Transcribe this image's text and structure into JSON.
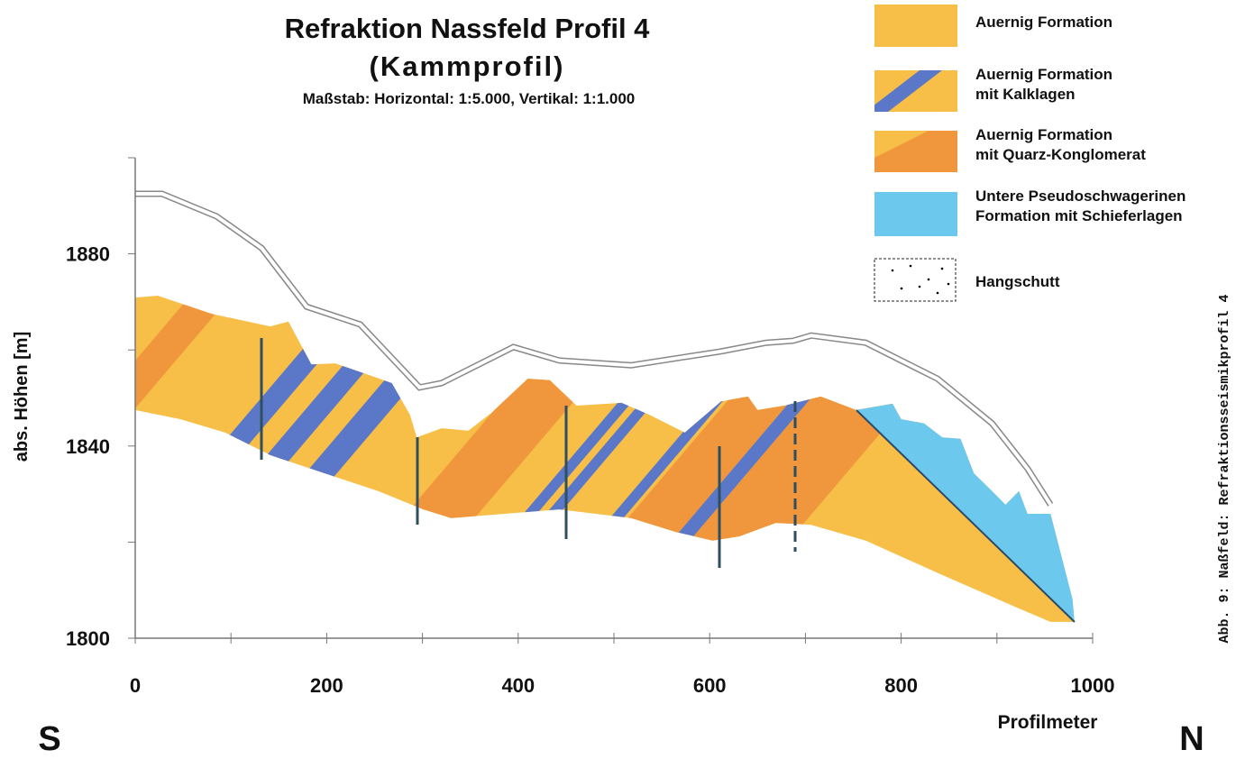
{
  "chart_data": {
    "type": "profile",
    "title": "Refraktion Nassfeld Profil 4",
    "subtitle": "(Kammprofil)",
    "scale_note": "Maßstab:  Horizontal: 1:5.000, Vertikal: 1:1.000",
    "x_label": "Profilmeter",
    "y_label": "abs. Höhen [m]",
    "annotations": [
      "S",
      "N",
      "Abb. 9: Naßfeld: Refraktionsseismikprofil 4"
    ],
    "xlim": [
      0,
      1000
    ],
    "ylim": [
      1800,
      1900
    ],
    "xticks": [
      0,
      200,
      400,
      600,
      800,
      1000
    ],
    "xminor_ticks": [
      100,
      300,
      500,
      700,
      900
    ],
    "yticks": [
      1800,
      1840,
      1880
    ],
    "yminor_ticks": [
      1820,
      1860,
      1900
    ],
    "surface": {
      "color": "#888888",
      "x": [
        0,
        28,
        85,
        132,
        179,
        235,
        297,
        320,
        395,
        443,
        518,
        612,
        659,
        687,
        706,
        763,
        838,
        895,
        932,
        956
      ],
      "y": [
        1892.5,
        1892.5,
        1887.8,
        1881.2,
        1869,
        1865.3,
        1852.2,
        1853.1,
        1860.6,
        1857.8,
        1856.8,
        1859.7,
        1861.5,
        1861.9,
        1863,
        1861.5,
        1854,
        1844.7,
        1835.3,
        1827.8
      ]
    },
    "geology_top": {
      "color": "#f7bf47",
      "x": [
        0,
        23.5,
        80,
        141,
        160,
        184,
        209,
        249.5,
        268,
        287,
        294,
        320,
        348,
        372,
        410,
        433,
        461,
        508,
        537,
        574,
        612,
        640,
        650,
        678,
        716,
        753,
        791,
        800,
        824,
        843,
        862,
        876,
        895,
        909,
        923,
        932,
        956,
        979,
        981
      ],
      "y": [
        1870.9,
        1871.3,
        1867.5,
        1864.9,
        1865.9,
        1857,
        1857.2,
        1854.4,
        1853.1,
        1846.5,
        1841.8,
        1843.7,
        1843.2,
        1846.9,
        1854,
        1853.7,
        1848.4,
        1849,
        1846.5,
        1842.8,
        1849.3,
        1850.3,
        1847.5,
        1848.4,
        1850.3,
        1847.5,
        1848.8,
        1845.6,
        1844.7,
        1841.8,
        1841.5,
        1834.3,
        1830.6,
        1827.8,
        1830.6,
        1825.9,
        1825.9,
        1808.1,
        1803.4
      ]
    },
    "geology_base": {
      "x": [
        0,
        47,
        94,
        141,
        198,
        254,
        301,
        330,
        386,
        443,
        518,
        565,
        603,
        631,
        669,
        706,
        763,
        847,
        923,
        956,
        981
      ],
      "y": [
        1847.5,
        1845.6,
        1842.8,
        1838.1,
        1834.3,
        1830.6,
        1826.8,
        1825,
        1825.9,
        1826.8,
        1825,
        1822.1,
        1820.3,
        1821.2,
        1824,
        1823.6,
        1820.3,
        1812.8,
        1806.2,
        1803.4,
        1803.4
      ]
    },
    "legend": [
      "Auernig Formation",
      "Auernig Formation\nmit Kalklagen",
      "Auernig Formation\nmit Quarz-Konglomerat",
      "Untere Pseudoschwagerinen\nFormation mit Schieferlagen",
      "Hangschutt"
    ]
  }
}
